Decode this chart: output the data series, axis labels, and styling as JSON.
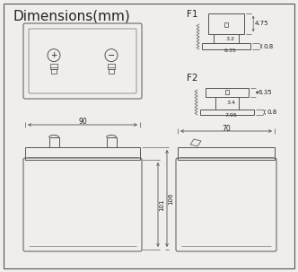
{
  "title": "Dimensions(mm)",
  "title_fontsize": 11,
  "bg_color": "#f0eeea",
  "line_color": "#555555",
  "text_color": "#222222",
  "fig_width": 3.32,
  "fig_height": 3.03,
  "dpi": 100,
  "f1_label": "F1",
  "f2_label": "F2",
  "dim_90": "90",
  "dim_70": "70",
  "dim_101": "101",
  "dim_106": "106",
  "f1_dim_475": "4.75",
  "f1_dim_32": "3.2",
  "f1_dim_635": "6.35",
  "f1_dim_08": "0.8",
  "f2_dim_635": "6.35",
  "f2_dim_34": "3.4",
  "f2_dim_795": "7.95",
  "f2_dim_08": "0.8"
}
